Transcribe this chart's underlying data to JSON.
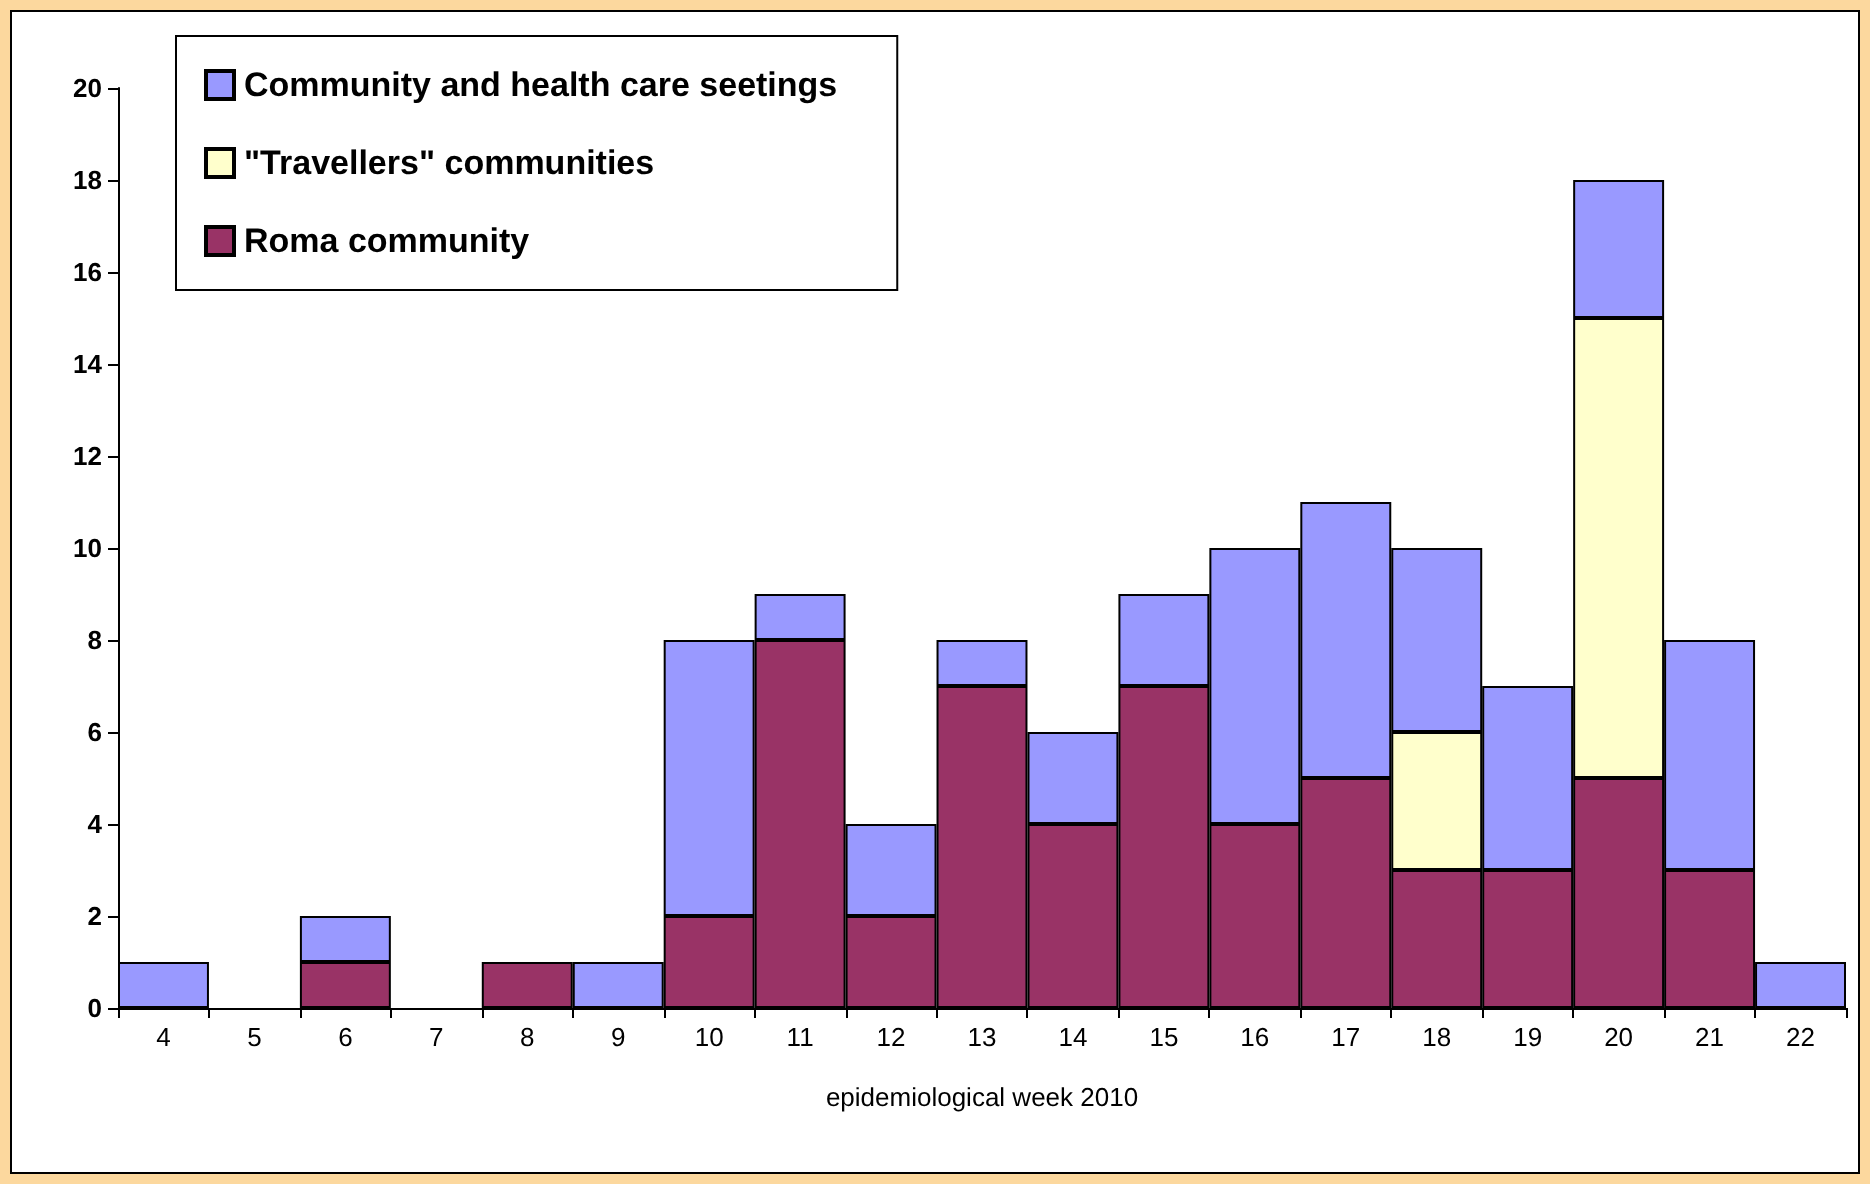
{
  "chart_data": {
    "type": "bar",
    "stacked": true,
    "xlabel": "epidemiological week 2010",
    "categories": [
      "4",
      "5",
      "6",
      "7",
      "8",
      "9",
      "10",
      "11",
      "12",
      "13",
      "14",
      "15",
      "16",
      "17",
      "18",
      "19",
      "20",
      "21",
      "22"
    ],
    "series": [
      {
        "name": "Roma community",
        "color": "#993366",
        "values": [
          0,
          0,
          1,
          0,
          1,
          0,
          2,
          8,
          2,
          7,
          4,
          7,
          4,
          5,
          3,
          3,
          5,
          3,
          0
        ]
      },
      {
        "name": "\"Travellers\" communities",
        "color": "#ffffcc",
        "values": [
          0,
          0,
          0,
          0,
          0,
          0,
          0,
          0,
          0,
          0,
          0,
          0,
          0,
          0,
          3,
          0,
          10,
          0,
          0
        ]
      },
      {
        "name": "Community and health care seetings",
        "color": "#9999ff",
        "values": [
          1,
          0,
          1,
          0,
          0,
          1,
          6,
          1,
          2,
          1,
          2,
          2,
          6,
          6,
          4,
          4,
          3,
          5,
          1
        ]
      }
    ],
    "ylim": [
      0,
      20
    ],
    "yticks": [
      0,
      2,
      4,
      6,
      8,
      10,
      12,
      14,
      16,
      18,
      20
    ],
    "grid": false,
    "legend": "top left"
  }
}
